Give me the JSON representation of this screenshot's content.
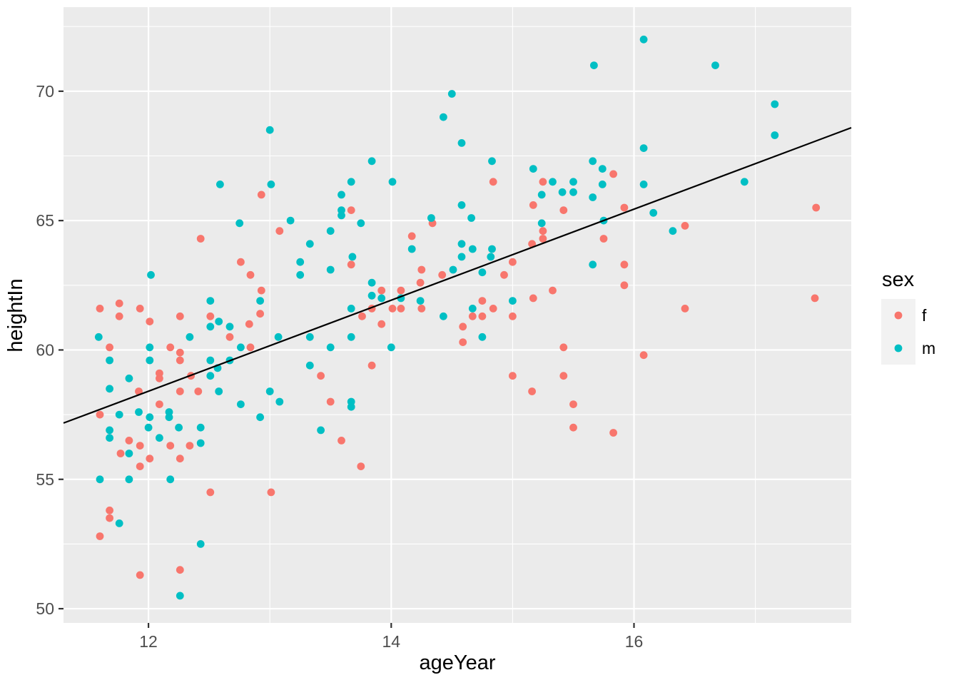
{
  "style": {
    "panel_bg": "#EBEBEB",
    "grid_color": "#FFFFFF",
    "tick_mark_color": "#333333",
    "tick_label_color": "#4D4D4D",
    "legend_key_bg": "#F2F2F2",
    "point_radius": 5.4
  },
  "chart_data": {
    "type": "scatter",
    "title": "",
    "xlabel": "ageYear",
    "ylabel": "heightIn",
    "x_domain": [
      11.3,
      17.79
    ],
    "y_domain": [
      49.45,
      73.25
    ],
    "x_major_ticks": [
      12,
      14,
      16
    ],
    "x_minor_ticks": [
      13,
      15,
      17
    ],
    "y_major_ticks": [
      50,
      55,
      60,
      65,
      70
    ],
    "y_minor_ticks": [
      52.5,
      57.5,
      62.5,
      67.5,
      72.5
    ],
    "grid": true,
    "legend": {
      "title": "sex",
      "position": "right",
      "entries": [
        {
          "label": "f",
          "color": "#F8766D"
        },
        {
          "label": "m",
          "color": "#00BFC4"
        }
      ]
    },
    "regression_line": {
      "slope": 1.7588,
      "intercept": 37.3,
      "color": "#000000"
    },
    "series": [
      {
        "name": "f",
        "color": "#F8766D",
        "points": [
          [
            12.93,
            66.0
          ],
          [
            14.84,
            66.5
          ],
          [
            15.25,
            66.5
          ],
          [
            13.67,
            65.4
          ],
          [
            15.17,
            65.6
          ],
          [
            15.42,
            65.4
          ],
          [
            15.83,
            66.8
          ],
          [
            15.92,
            65.5
          ],
          [
            17.5,
            65.5
          ],
          [
            13.08,
            64.6
          ],
          [
            12.43,
            64.3
          ],
          [
            14.34,
            64.9
          ],
          [
            14.17,
            64.4
          ],
          [
            15.16,
            64.1
          ],
          [
            15.25,
            64.6
          ],
          [
            15.25,
            64.3
          ],
          [
            16.42,
            64.8
          ],
          [
            15.75,
            64.3
          ],
          [
            12.76,
            63.4
          ],
          [
            12.84,
            62.9
          ],
          [
            12.93,
            62.3
          ],
          [
            13.67,
            63.3
          ],
          [
            14.25,
            63.1
          ],
          [
            14.42,
            62.9
          ],
          [
            14.93,
            62.9
          ],
          [
            15.0,
            63.4
          ],
          [
            15.92,
            63.3
          ],
          [
            15.92,
            62.5
          ],
          [
            15.33,
            62.3
          ],
          [
            13.92,
            62.3
          ],
          [
            14.08,
            62.3
          ],
          [
            14.24,
            62.6
          ],
          [
            15.17,
            62.0
          ],
          [
            17.49,
            62.0
          ],
          [
            11.76,
            61.8
          ],
          [
            11.6,
            61.6
          ],
          [
            11.93,
            61.6
          ],
          [
            11.76,
            61.3
          ],
          [
            12.26,
            61.3
          ],
          [
            12.51,
            61.3
          ],
          [
            12.01,
            61.1
          ],
          [
            12.83,
            61.0
          ],
          [
            12.92,
            61.4
          ],
          [
            13.76,
            61.3
          ],
          [
            13.84,
            61.6
          ],
          [
            14.01,
            61.6
          ],
          [
            14.08,
            61.6
          ],
          [
            14.25,
            61.6
          ],
          [
            13.92,
            61.0
          ],
          [
            14.75,
            61.3
          ],
          [
            14.67,
            61.3
          ],
          [
            14.75,
            61.9
          ],
          [
            14.84,
            61.6
          ],
          [
            15.0,
            61.3
          ],
          [
            16.42,
            61.6
          ],
          [
            12.67,
            60.5
          ],
          [
            11.68,
            60.1
          ],
          [
            12.18,
            60.1
          ],
          [
            12.84,
            60.1
          ],
          [
            12.26,
            59.9
          ],
          [
            14.59,
            60.9
          ],
          [
            14.59,
            60.3
          ],
          [
            15.42,
            60.1
          ],
          [
            16.08,
            59.8
          ],
          [
            12.26,
            59.6
          ],
          [
            13.42,
            59.0
          ],
          [
            12.09,
            59.1
          ],
          [
            12.09,
            58.9
          ],
          [
            12.35,
            59.0
          ],
          [
            13.84,
            59.4
          ],
          [
            15.0,
            59.0
          ],
          [
            15.16,
            58.4
          ],
          [
            15.42,
            59.0
          ],
          [
            11.92,
            58.4
          ],
          [
            12.26,
            58.4
          ],
          [
            12.41,
            58.4
          ],
          [
            12.09,
            57.9
          ],
          [
            11.6,
            57.5
          ],
          [
            13.5,
            58.0
          ],
          [
            15.5,
            57.9
          ],
          [
            11.84,
            56.5
          ],
          [
            11.93,
            56.3
          ],
          [
            11.77,
            56.0
          ],
          [
            12.01,
            55.8
          ],
          [
            11.93,
            55.5
          ],
          [
            12.18,
            56.3
          ],
          [
            12.34,
            56.3
          ],
          [
            12.26,
            55.8
          ],
          [
            13.59,
            56.5
          ],
          [
            13.75,
            55.5
          ],
          [
            15.5,
            57.0
          ],
          [
            15.83,
            56.8
          ],
          [
            12.51,
            54.5
          ],
          [
            13.01,
            54.5
          ],
          [
            11.68,
            53.8
          ],
          [
            11.68,
            53.5
          ],
          [
            11.6,
            52.8
          ],
          [
            11.93,
            51.3
          ],
          [
            12.26,
            51.5
          ]
        ]
      },
      {
        "name": "m",
        "color": "#00BFC4",
        "points": [
          [
            16.08,
            72.0
          ],
          [
            15.67,
            71.0
          ],
          [
            16.67,
            71.0
          ],
          [
            14.5,
            69.9
          ],
          [
            17.16,
            69.5
          ],
          [
            14.43,
            69.0
          ],
          [
            13.0,
            68.5
          ],
          [
            14.58,
            68.0
          ],
          [
            17.16,
            68.3
          ],
          [
            16.08,
            67.8
          ],
          [
            13.84,
            67.3
          ],
          [
            14.83,
            67.3
          ],
          [
            15.17,
            67.0
          ],
          [
            15.66,
            67.3
          ],
          [
            15.74,
            67.0
          ],
          [
            13.01,
            66.4
          ],
          [
            12.59,
            66.4
          ],
          [
            13.67,
            66.5
          ],
          [
            14.01,
            66.5
          ],
          [
            15.33,
            66.5
          ],
          [
            15.5,
            66.5
          ],
          [
            15.74,
            66.4
          ],
          [
            16.08,
            66.4
          ],
          [
            16.91,
            66.5
          ],
          [
            13.59,
            66.0
          ],
          [
            15.24,
            66.0
          ],
          [
            15.41,
            66.1
          ],
          [
            15.5,
            66.1
          ],
          [
            15.66,
            65.9
          ],
          [
            13.59,
            65.4
          ],
          [
            14.58,
            65.6
          ],
          [
            16.16,
            65.3
          ],
          [
            13.59,
            65.2
          ],
          [
            13.17,
            65.0
          ],
          [
            14.33,
            65.1
          ],
          [
            14.66,
            65.1
          ],
          [
            15.75,
            65.0
          ],
          [
            12.75,
            64.9
          ],
          [
            13.75,
            64.9
          ],
          [
            15.24,
            64.9
          ],
          [
            13.5,
            64.6
          ],
          [
            16.32,
            64.6
          ],
          [
            13.33,
            64.1
          ],
          [
            14.58,
            64.1
          ],
          [
            14.17,
            63.9
          ],
          [
            14.67,
            63.9
          ],
          [
            14.83,
            63.9
          ],
          [
            14.58,
            63.6
          ],
          [
            14.82,
            63.6
          ],
          [
            13.68,
            63.6
          ],
          [
            13.25,
            63.4
          ],
          [
            15.66,
            63.3
          ],
          [
            13.5,
            63.1
          ],
          [
            14.51,
            63.1
          ],
          [
            13.25,
            62.9
          ],
          [
            12.02,
            62.9
          ],
          [
            14.75,
            63.0
          ],
          [
            13.84,
            62.6
          ],
          [
            13.84,
            62.1
          ],
          [
            13.92,
            62.0
          ],
          [
            14.08,
            62.0
          ],
          [
            14.24,
            61.9
          ],
          [
            12.51,
            61.9
          ],
          [
            12.92,
            61.9
          ],
          [
            15.0,
            61.9
          ],
          [
            13.67,
            61.6
          ],
          [
            14.67,
            61.6
          ],
          [
            14.43,
            61.3
          ],
          [
            12.58,
            61.1
          ],
          [
            12.51,
            60.9
          ],
          [
            12.67,
            60.9
          ],
          [
            11.59,
            60.5
          ],
          [
            12.34,
            60.5
          ],
          [
            13.07,
            60.5
          ],
          [
            13.33,
            60.5
          ],
          [
            14.75,
            60.5
          ],
          [
            13.67,
            60.5
          ],
          [
            12.01,
            60.1
          ],
          [
            12.76,
            60.1
          ],
          [
            13.5,
            60.1
          ],
          [
            14.0,
            60.1
          ],
          [
            11.68,
            59.6
          ],
          [
            12.01,
            59.6
          ],
          [
            12.51,
            59.6
          ],
          [
            12.67,
            59.6
          ],
          [
            12.57,
            59.3
          ],
          [
            13.33,
            59.4
          ],
          [
            11.84,
            58.9
          ],
          [
            12.51,
            59.0
          ],
          [
            11.68,
            58.5
          ],
          [
            12.58,
            58.4
          ],
          [
            13.0,
            58.4
          ],
          [
            13.08,
            58.0
          ],
          [
            12.76,
            57.9
          ],
          [
            13.67,
            58.0
          ],
          [
            13.67,
            57.8
          ],
          [
            11.76,
            57.5
          ],
          [
            11.92,
            57.6
          ],
          [
            12.92,
            57.4
          ],
          [
            12.17,
            57.6
          ],
          [
            12.17,
            57.4
          ],
          [
            12.01,
            57.4
          ],
          [
            12.0,
            57.0
          ],
          [
            12.25,
            57.0
          ],
          [
            12.43,
            57.0
          ],
          [
            12.43,
            56.4
          ],
          [
            11.68,
            56.9
          ],
          [
            11.68,
            56.6
          ],
          [
            11.84,
            56.0
          ],
          [
            12.09,
            56.6
          ],
          [
            13.42,
            56.9
          ],
          [
            11.6,
            55.0
          ],
          [
            11.84,
            55.0
          ],
          [
            12.18,
            55.0
          ],
          [
            11.76,
            53.3
          ],
          [
            12.43,
            52.5
          ],
          [
            12.26,
            50.5
          ]
        ]
      }
    ]
  }
}
